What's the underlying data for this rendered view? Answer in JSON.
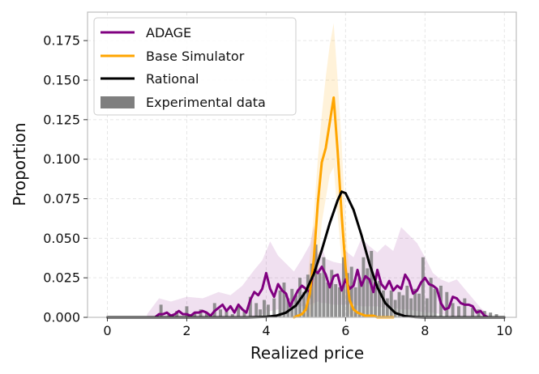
{
  "chart_data": {
    "type": "line",
    "title": "",
    "xlabel": "Realized price",
    "ylabel": "Proportion",
    "xlim": [
      -0.5,
      10.3
    ],
    "ylim": [
      0,
      0.193
    ],
    "xticks": [
      0,
      2,
      4,
      6,
      8,
      10
    ],
    "xtick_labels": [
      "0",
      "2",
      "4",
      "6",
      "8",
      "10"
    ],
    "yticks": [
      0,
      0.025,
      0.05,
      0.075,
      0.1,
      0.125,
      0.15,
      0.175
    ],
    "ytick_labels": [
      "0.000",
      "0.025",
      "0.050",
      "0.075",
      "0.100",
      "0.125",
      "0.150",
      "0.175"
    ],
    "grid": true,
    "legend_position": "top-left",
    "legend": [
      "ADAGE",
      "Base Simulator",
      "Rational",
      "Experimental data"
    ],
    "colors": {
      "adage": "#800080",
      "base": "#FFA500",
      "rational": "#000000",
      "bars": "#7f7f7f",
      "grid": "#e6e6e6",
      "frame": "#bfbfbf"
    },
    "series": [
      {
        "name": "ADAGE",
        "type": "line",
        "x": [
          1.0,
          1.2,
          1.3,
          1.4,
          1.5,
          1.6,
          1.7,
          1.8,
          1.9,
          2.0,
          2.1,
          2.2,
          2.3,
          2.4,
          2.5,
          2.6,
          2.7,
          2.8,
          2.9,
          3.0,
          3.1,
          3.2,
          3.3,
          3.4,
          3.5,
          3.6,
          3.7,
          3.8,
          3.9,
          4.0,
          4.1,
          4.2,
          4.3,
          4.4,
          4.5,
          4.6,
          4.7,
          4.8,
          4.9,
          5.0,
          5.1,
          5.2,
          5.3,
          5.4,
          5.5,
          5.6,
          5.7,
          5.8,
          5.9,
          6.0,
          6.1,
          6.2,
          6.3,
          6.4,
          6.5,
          6.6,
          6.7,
          6.8,
          6.9,
          7.0,
          7.1,
          7.2,
          7.3,
          7.4,
          7.5,
          7.6,
          7.7,
          7.8,
          7.9,
          8.0,
          8.1,
          8.2,
          8.3,
          8.4,
          8.5,
          8.6,
          8.7,
          8.8,
          8.9,
          9.0,
          9.1,
          9.2,
          9.3,
          9.4,
          9.5,
          9.6
        ],
        "y": [
          0,
          0,
          0.002,
          0.002,
          0.003,
          0.001,
          0.002,
          0.004,
          0.002,
          0.002,
          0.001,
          0.003,
          0.003,
          0.004,
          0.003,
          0.001,
          0.004,
          0.006,
          0.008,
          0.004,
          0.007,
          0.003,
          0.008,
          0.005,
          0.003,
          0.011,
          0.016,
          0.014,
          0.018,
          0.028,
          0.018,
          0.013,
          0.021,
          0.017,
          0.015,
          0.007,
          0.012,
          0.017,
          0.02,
          0.018,
          0.016,
          0.03,
          0.028,
          0.032,
          0.027,
          0.019,
          0.026,
          0.027,
          0.017,
          0.024,
          0.018,
          0.02,
          0.03,
          0.02,
          0.026,
          0.024,
          0.016,
          0.03,
          0.021,
          0.018,
          0.023,
          0.017,
          0.02,
          0.018,
          0.027,
          0.023,
          0.015,
          0.017,
          0.022,
          0.025,
          0.021,
          0.02,
          0.018,
          0.009,
          0.005,
          0.006,
          0.013,
          0.012,
          0.009,
          0.008,
          0.008,
          0.007,
          0.003,
          0.004,
          0.001,
          0
        ]
      },
      {
        "name": "ADAGE band",
        "type": "band",
        "x": [
          1.0,
          1.3,
          1.6,
          2.0,
          2.4,
          2.8,
          3.1,
          3.4,
          3.7,
          3.9,
          4.1,
          4.3,
          4.5,
          4.7,
          4.9,
          5.1,
          5.2,
          5.3,
          5.4,
          5.5,
          5.7,
          5.9,
          6.0,
          6.2,
          6.4,
          6.6,
          6.8,
          7.0,
          7.2,
          7.4,
          7.6,
          7.8,
          8.0,
          8.2,
          8.4,
          8.6,
          8.8,
          9.0,
          9.2,
          9.4,
          9.6
        ],
        "upper": [
          0.002,
          0.012,
          0.01,
          0.013,
          0.012,
          0.016,
          0.014,
          0.02,
          0.03,
          0.036,
          0.048,
          0.039,
          0.034,
          0.029,
          0.037,
          0.046,
          0.058,
          0.04,
          0.045,
          0.037,
          0.035,
          0.034,
          0.042,
          0.038,
          0.05,
          0.045,
          0.041,
          0.046,
          0.042,
          0.057,
          0.052,
          0.047,
          0.038,
          0.028,
          0.024,
          0.022,
          0.024,
          0.018,
          0.012,
          0.006,
          0.002
        ],
        "lower": [
          0,
          0,
          0,
          0,
          0,
          0,
          0,
          0,
          0,
          0.002,
          0.004,
          0.005,
          0.004,
          0.006,
          0.007,
          0.008,
          0.009,
          0.01,
          0.009,
          0.009,
          0.008,
          0.008,
          0.008,
          0.008,
          0.007,
          0.007,
          0.007,
          0.006,
          0.006,
          0.005,
          0.005,
          0.004,
          0.003,
          0.003,
          0.002,
          0.001,
          0,
          0,
          0,
          0,
          0
        ]
      },
      {
        "name": "Base Simulator",
        "type": "line",
        "x": [
          4.7,
          4.8,
          4.9,
          5.0,
          5.1,
          5.2,
          5.3,
          5.4,
          5.5,
          5.6,
          5.7,
          5.8,
          5.9,
          6.0,
          6.1,
          6.2,
          6.3,
          6.4,
          6.5,
          6.6,
          6.7,
          6.8,
          6.9,
          7.0,
          7.1,
          7.2
        ],
        "y": [
          0,
          0.001,
          0.002,
          0.005,
          0.015,
          0.037,
          0.072,
          0.098,
          0.107,
          0.123,
          0.139,
          0.105,
          0.065,
          0.031,
          0.011,
          0.005,
          0.003,
          0.002,
          0.001,
          0.001,
          0.001,
          0,
          0,
          0,
          0,
          0
        ]
      },
      {
        "name": "Base Simulator band",
        "type": "band",
        "x": [
          4.9,
          5.0,
          5.1,
          5.2,
          5.3,
          5.4,
          5.5,
          5.6,
          5.7,
          5.8,
          5.9,
          6.0,
          6.1,
          6.2,
          6.3
        ],
        "upper": [
          0.002,
          0.012,
          0.038,
          0.065,
          0.1,
          0.128,
          0.152,
          0.172,
          0.186,
          0.15,
          0.11,
          0.06,
          0.024,
          0.008,
          0.002
        ],
        "lower": [
          0,
          0,
          0,
          0.008,
          0.03,
          0.06,
          0.075,
          0.09,
          0.095,
          0.065,
          0.035,
          0.01,
          0.002,
          0,
          0
        ]
      },
      {
        "name": "Rational",
        "type": "line",
        "x": [
          0,
          0.5,
          1.0,
          1.5,
          2.0,
          2.5,
          3.0,
          3.5,
          4.0,
          4.25,
          4.5,
          4.75,
          5.0,
          5.2,
          5.4,
          5.6,
          5.8,
          5.9,
          6.0,
          6.2,
          6.4,
          6.6,
          6.8,
          7.0,
          7.25,
          7.5,
          7.75,
          8.0,
          8.5,
          9.0,
          9.5,
          10.0
        ],
        "y": [
          0,
          0,
          0,
          0,
          0,
          0,
          0,
          0,
          0.0003,
          0.001,
          0.003,
          0.0075,
          0.0165,
          0.0275,
          0.0425,
          0.0595,
          0.074,
          0.0795,
          0.0785,
          0.068,
          0.052,
          0.034,
          0.019,
          0.009,
          0.0028,
          0.0007,
          0.0002,
          0,
          0,
          0,
          0,
          0
        ]
      },
      {
        "name": "Experimental data",
        "type": "bar",
        "bar_width": 0.08,
        "x": [
          1.35,
          1.55,
          1.75,
          2.0,
          2.2,
          2.35,
          2.5,
          2.7,
          2.85,
          3.0,
          3.15,
          3.3,
          3.45,
          3.6,
          3.75,
          3.85,
          3.95,
          4.05,
          4.2,
          4.35,
          4.45,
          4.55,
          4.65,
          4.75,
          4.85,
          4.95,
          5.05,
          5.15,
          5.25,
          5.35,
          5.45,
          5.55,
          5.65,
          5.75,
          5.85,
          5.95,
          6.05,
          6.15,
          6.25,
          6.35,
          6.45,
          6.55,
          6.65,
          6.75,
          6.85,
          6.95,
          7.05,
          7.15,
          7.25,
          7.35,
          7.45,
          7.55,
          7.65,
          7.75,
          7.85,
          7.95,
          8.05,
          8.15,
          8.25,
          8.4,
          8.55,
          8.7,
          8.85,
          9.0,
          9.2,
          9.35,
          9.5,
          9.65,
          9.8
        ],
        "y": [
          0.008,
          0.002,
          0.004,
          0.007,
          0.003,
          0.005,
          0.003,
          0.009,
          0.005,
          0.004,
          0.002,
          0.007,
          0.004,
          0.013,
          0.009,
          0.005,
          0.011,
          0.008,
          0.012,
          0.017,
          0.022,
          0.012,
          0.018,
          0.014,
          0.025,
          0.016,
          0.027,
          0.034,
          0.046,
          0.028,
          0.038,
          0.022,
          0.03,
          0.021,
          0.019,
          0.038,
          0.028,
          0.032,
          0.019,
          0.025,
          0.038,
          0.031,
          0.042,
          0.019,
          0.023,
          0.017,
          0.012,
          0.017,
          0.011,
          0.016,
          0.014,
          0.02,
          0.012,
          0.018,
          0.015,
          0.038,
          0.012,
          0.025,
          0.018,
          0.02,
          0.016,
          0.009,
          0.007,
          0.012,
          0.006,
          0.005,
          0.004,
          0.003,
          0.002
        ]
      }
    ]
  }
}
